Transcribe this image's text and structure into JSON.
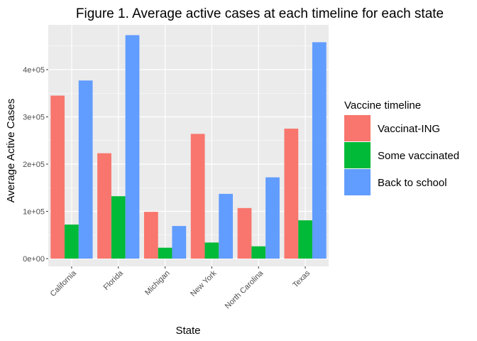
{
  "chart_data": {
    "type": "bar",
    "title": "Figure 1. Average active cases at each timeline for each state",
    "xlabel": "State",
    "ylabel": "Average Active Cases",
    "categories": [
      "California",
      "Florida",
      "Michigan",
      "New York",
      "North Carolina",
      "Texas"
    ],
    "series": [
      {
        "name": "Vaccinat-ING",
        "color": "#F8766D",
        "values": [
          345000,
          223000,
          99000,
          264000,
          107000,
          275000
        ]
      },
      {
        "name": "Some vaccinated",
        "color": "#00BA38",
        "values": [
          72000,
          132000,
          23000,
          34000,
          26000,
          81000
        ]
      },
      {
        "name": "Back to school",
        "color": "#619CFF",
        "values": [
          377000,
          473000,
          69000,
          137000,
          172000,
          458000
        ]
      }
    ],
    "ylim": [
      0,
      500000
    ],
    "yticks": [
      0,
      100000,
      200000,
      300000,
      400000
    ],
    "ytick_labels": [
      "0e+00",
      "1e+05",
      "2e+05",
      "3e+05",
      "4e+05"
    ],
    "legend": {
      "title": "Vaccine timeline",
      "position": "right"
    },
    "grid": true,
    "panel_background": "#EBEBEB"
  }
}
